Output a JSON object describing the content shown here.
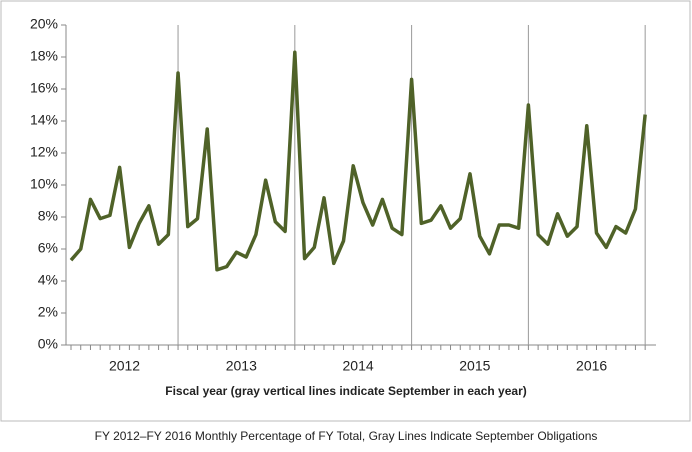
{
  "chart_data": {
    "type": "line",
    "x_label": "Fiscal year (gray vertical lines indicate September in each year)",
    "caption": "FY 2012–FY 2016 Monthly Percentage of FY Total, Gray Lines Indicate September Obligations",
    "categories": [
      null,
      null,
      null,
      null,
      null,
      null,
      "2012",
      null,
      null,
      null,
      null,
      null,
      null,
      null,
      null,
      null,
      null,
      null,
      "2013",
      null,
      null,
      null,
      null,
      null,
      null,
      null,
      null,
      null,
      null,
      null,
      "2014",
      null,
      null,
      null,
      null,
      null,
      null,
      null,
      null,
      null,
      null,
      null,
      "2015",
      null,
      null,
      null,
      null,
      null,
      null,
      null,
      null,
      null,
      null,
      null,
      "2016",
      null,
      null,
      null,
      null,
      null
    ],
    "series": [
      {
        "color": "#4f6228",
        "values": [
          5.3,
          6.0,
          9.1,
          7.9,
          8.1,
          11.1,
          6.1,
          7.6,
          8.7,
          6.3,
          6.9,
          17.0,
          7.4,
          7.9,
          13.5,
          4.7,
          4.9,
          5.8,
          5.5,
          6.9,
          10.3,
          7.7,
          7.1,
          18.3,
          5.4,
          6.1,
          9.2,
          5.1,
          6.5,
          11.2,
          8.9,
          7.5,
          9.1,
          7.3,
          6.9,
          16.6,
          7.6,
          7.8,
          8.7,
          7.3,
          7.9,
          10.7,
          6.8,
          5.7,
          7.5,
          7.5,
          7.3,
          15.0,
          6.9,
          6.3,
          8.2,
          6.8,
          7.4,
          13.7,
          7.0,
          6.1,
          7.4,
          7.0,
          8.5,
          14.4
        ]
      }
    ],
    "ylim": [
      0,
      20
    ],
    "yticks": [
      {
        "value": 0,
        "label": "0%"
      },
      {
        "value": 2,
        "label": "2%"
      },
      {
        "value": 4,
        "label": "4%"
      },
      {
        "value": 6,
        "label": "6%"
      },
      {
        "value": 8,
        "label": "8%"
      },
      {
        "value": 10,
        "label": "10%"
      },
      {
        "value": 12,
        "label": "12%"
      },
      {
        "value": 14,
        "label": "14%"
      },
      {
        "value": 16,
        "label": "16%"
      },
      {
        "value": 18,
        "label": "18%"
      },
      {
        "value": 20,
        "label": "20%"
      }
    ],
    "grid": false
  }
}
